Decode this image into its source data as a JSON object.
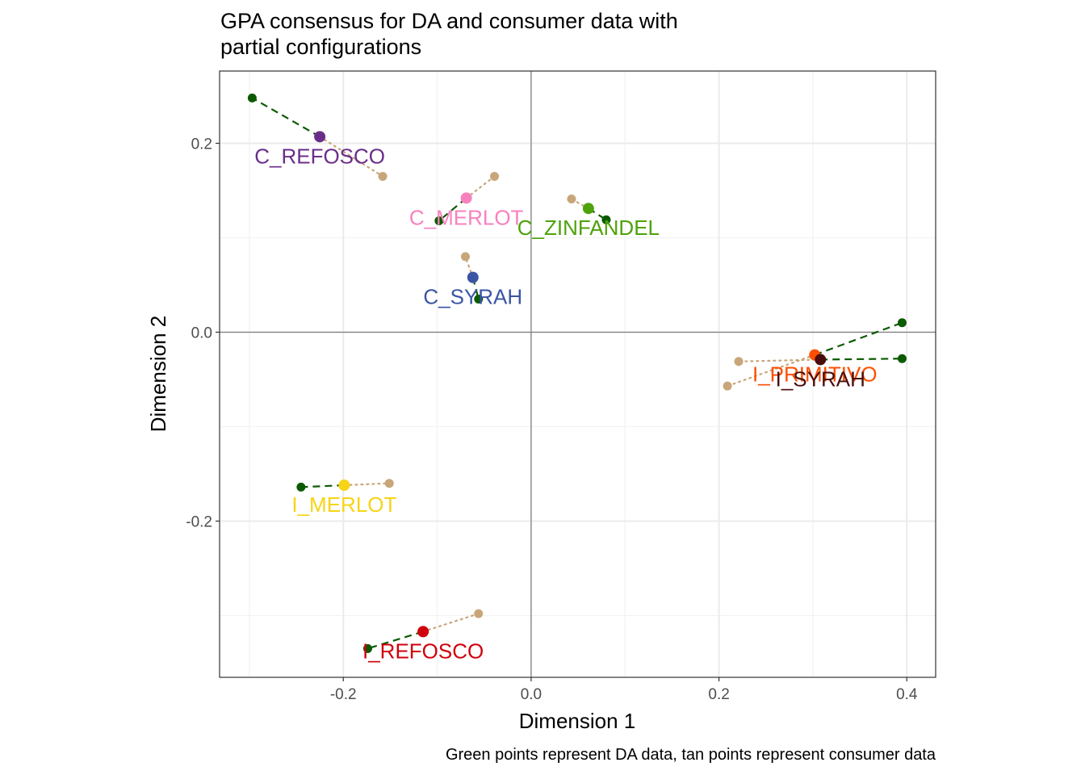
{
  "chart_data": {
    "type": "scatter",
    "title_lines": [
      "GPA consensus for DA and consumer data with",
      "partial configurations"
    ],
    "xlabel": "Dimension 1",
    "ylabel": "Dimension 2",
    "caption": "Green points represent DA data, tan points represent consumer data",
    "xlim": [
      -0.3317,
      0.4307
    ],
    "ylim": [
      -0.3654,
      0.2765
    ],
    "x_ticks": [
      {
        "value": -0.2,
        "label": "-0.2"
      },
      {
        "value": 0.0,
        "label": "0.0"
      },
      {
        "value": 0.2,
        "label": "0.2"
      },
      {
        "value": 0.4,
        "label": "0.4"
      }
    ],
    "y_ticks": [
      {
        "value": -0.2,
        "label": "-0.2"
      },
      {
        "value": 0.0,
        "label": "0.0"
      },
      {
        "value": 0.2,
        "label": "0.2"
      }
    ],
    "grid": true,
    "reference_lines": {
      "x": 0,
      "y": 0
    },
    "partial_colors": {
      "DA": "#0b5a00",
      "consumer": "#c8a67a"
    },
    "points": [
      {
        "label": "C_REFOSCO",
        "color": "#6b2d8a",
        "consensus": [
          -0.225,
          0.207
        ],
        "DA": [
          -0.297,
          0.248
        ],
        "consumer": [
          -0.158,
          0.165
        ]
      },
      {
        "label": "C_MERLOT",
        "color": "#f781bf",
        "consensus": [
          -0.069,
          0.142
        ],
        "DA": [
          -0.098,
          0.118
        ],
        "consumer": [
          -0.039,
          0.165
        ]
      },
      {
        "label": "C_ZINFANDEL",
        "color": "#4ea20b",
        "consensus": [
          0.061,
          0.131
        ],
        "DA": [
          0.08,
          0.119
        ],
        "consumer": [
          0.043,
          0.141
        ]
      },
      {
        "label": "C_SYRAH",
        "color": "#3a55a4",
        "consensus": [
          -0.062,
          0.058
        ],
        "DA": [
          -0.056,
          0.035
        ],
        "consumer": [
          -0.07,
          0.08
        ]
      },
      {
        "label": "I_PRIMITIVO",
        "color": "#fe4f00",
        "consensus": [
          0.302,
          -0.024
        ],
        "DA": [
          0.395,
          0.01
        ],
        "consumer": [
          0.209,
          -0.057
        ]
      },
      {
        "label": "I_SYRAH",
        "color": "#4a0d0d",
        "consensus": [
          0.308,
          -0.029
        ],
        "DA": [
          0.395,
          -0.028
        ],
        "consumer": [
          0.221,
          -0.031
        ]
      },
      {
        "label": "I_MERLOT",
        "color": "#f7d417",
        "consensus": [
          -0.199,
          -0.162
        ],
        "DA": [
          -0.245,
          -0.164
        ],
        "consumer": [
          -0.151,
          -0.16
        ]
      },
      {
        "label": "I_REFOSCO",
        "color": "#d0000c",
        "consensus": [
          -0.115,
          -0.317
        ],
        "DA": [
          -0.174,
          -0.335
        ],
        "consumer": [
          -0.056,
          -0.298
        ]
      }
    ]
  }
}
